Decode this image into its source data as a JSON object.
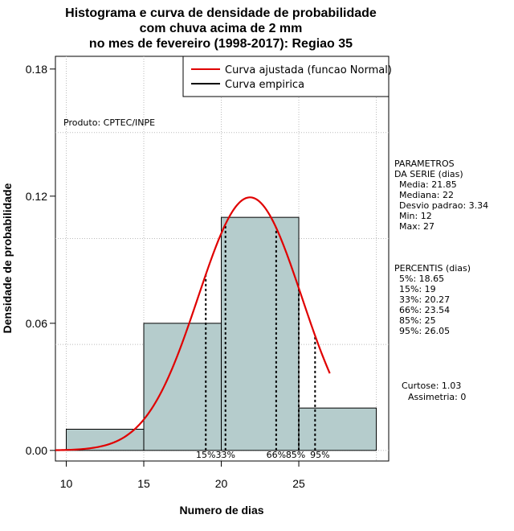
{
  "chart_data": {
    "type": "bar",
    "title_lines": [
      "Histograma e curva de densidade de probabilidade",
      "com chuva acima de 2 mm",
      "no mes de fevereiro (1998-2017): Regiao 35"
    ],
    "xlabel": "Numero de dias",
    "ylabel": "Densidade de probabilidade",
    "xlim": [
      9.3,
      30.8
    ],
    "ylim": [
      -0.005,
      0.186
    ],
    "x_ticks": [
      10,
      15,
      20,
      25
    ],
    "y_ticks": [
      0.0,
      0.06,
      0.12,
      0.18
    ],
    "y_tick_labels": [
      "0.00",
      "0.06",
      "0.12",
      "0.18"
    ],
    "grid_x": [
      10,
      15,
      20,
      25,
      30
    ],
    "grid_y": [
      0.0,
      0.05,
      0.1,
      0.15
    ],
    "histogram": {
      "bins": [
        [
          10,
          15
        ],
        [
          15,
          20
        ],
        [
          20,
          25
        ],
        [
          25,
          30
        ]
      ],
      "density": [
        0.01,
        0.06,
        0.11,
        0.02
      ],
      "color": "#b5cccc"
    },
    "normal_curve": {
      "name": "Curva ajustada (funcao Normal)",
      "mean": 21.85,
      "sd": 3.34,
      "x_range": [
        9.3,
        27.0
      ],
      "color": "#e00000"
    },
    "empirical_curve": {
      "name": "Curva empirica",
      "color": "#000000"
    },
    "percentile_lines": [
      {
        "label": "15%",
        "x": 19.0
      },
      {
        "label": "33%",
        "x": 20.27
      },
      {
        "label": "66%",
        "x": 23.54
      },
      {
        "label": "85%",
        "x": 25.0
      },
      {
        "label": "95%",
        "x": 26.05
      }
    ],
    "product_label": "Produto: CPTEC/INPE",
    "legend_position": "top-right"
  },
  "side_panel": {
    "params_title": [
      "PARAMETROS",
      "DA SERIE (dias)"
    ],
    "params": [
      "Media: 21.85",
      "Mediana: 22",
      "Desvio padrao: 3.34",
      "Min: 12",
      "Max: 27"
    ],
    "percentis_title": "PERCENTIS (dias)",
    "percentis": [
      "5%: 18.65",
      "15%: 19",
      "33%: 20.27",
      "66%: 23.54",
      "85%: 25",
      "95%: 26.05"
    ],
    "curtose": "Curtose: 1.03",
    "assimetria": "Assimetria: 0"
  }
}
